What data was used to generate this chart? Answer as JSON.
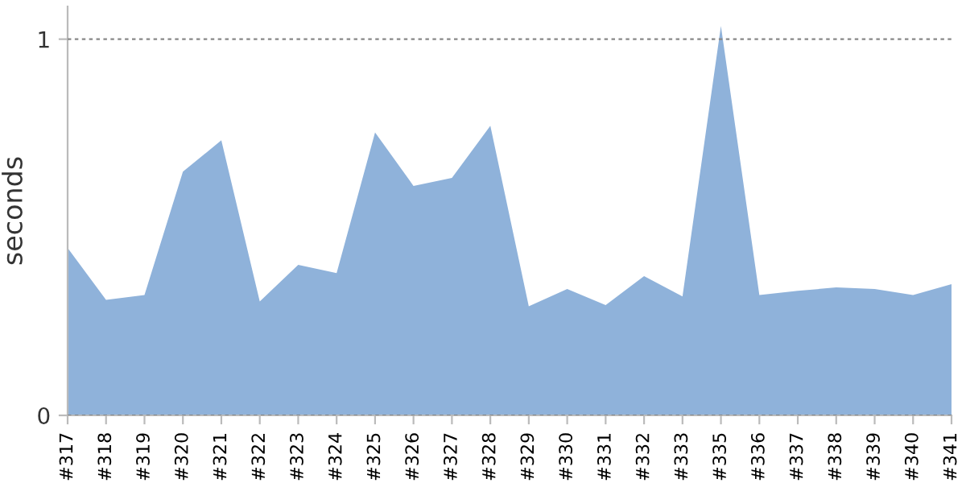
{
  "chart_data": {
    "type": "area",
    "ylabel": "seconds",
    "categories": [
      "#317",
      "#318",
      "#319",
      "#320",
      "#321",
      "#322",
      "#323",
      "#324",
      "#325",
      "#326",
      "#327",
      "#328",
      "#329",
      "#330",
      "#331",
      "#332",
      "#333",
      "#335",
      "#336",
      "#337",
      "#338",
      "#339",
      "#340",
      "#341"
    ],
    "series": [
      {
        "color": "#8fb2da",
        "values": [
          0.445,
          0.307,
          0.32,
          0.648,
          0.731,
          0.303,
          0.4,
          0.378,
          0.752,
          0.61,
          0.631,
          0.77,
          0.29,
          0.336,
          0.293,
          0.37,
          0.316,
          1.035,
          0.32,
          0.331,
          0.34,
          0.336,
          0.32,
          0.349
        ]
      }
    ],
    "ylim": [
      0,
      1.087
    ],
    "yticks": [
      0,
      1
    ],
    "grid": "y",
    "legend": false
  }
}
